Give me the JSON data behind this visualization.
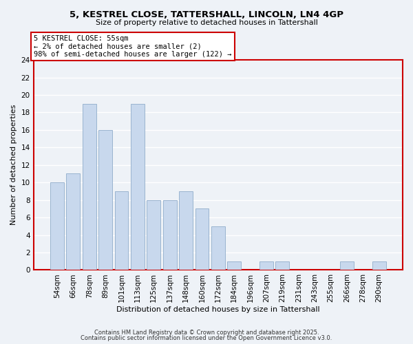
{
  "title1": "5, KESTREL CLOSE, TATTERSHALL, LINCOLN, LN4 4GP",
  "title2": "Size of property relative to detached houses in Tattershall",
  "xlabel": "Distribution of detached houses by size in Tattershall",
  "ylabel": "Number of detached properties",
  "bar_color": "#c8d8ed",
  "bar_edge_color": "#9ab4cf",
  "categories": [
    "54sqm",
    "66sqm",
    "78sqm",
    "89sqm",
    "101sqm",
    "113sqm",
    "125sqm",
    "137sqm",
    "148sqm",
    "160sqm",
    "172sqm",
    "184sqm",
    "196sqm",
    "207sqm",
    "219sqm",
    "231sqm",
    "243sqm",
    "255sqm",
    "266sqm",
    "278sqm",
    "290sqm"
  ],
  "values": [
    10,
    11,
    19,
    16,
    9,
    19,
    8,
    8,
    9,
    7,
    5,
    1,
    0,
    1,
    1,
    0,
    0,
    0,
    1,
    0,
    1
  ],
  "ylim": [
    0,
    24
  ],
  "yticks": [
    0,
    2,
    4,
    6,
    8,
    10,
    12,
    14,
    16,
    18,
    20,
    22,
    24
  ],
  "annotation_title": "5 KESTREL CLOSE: 55sqm",
  "annotation_line1": "← 2% of detached houses are smaller (2)",
  "annotation_line2": "98% of semi-detached houses are larger (122) →",
  "annotation_box_facecolor": "#ffffff",
  "annotation_box_edgecolor": "#cc0000",
  "footnote1": "Contains HM Land Registry data © Crown copyright and database right 2025.",
  "footnote2": "Contains public sector information licensed under the Open Government Licence v3.0.",
  "background_color": "#eef2f7",
  "plot_bg_color": "#eef2f7",
  "grid_color": "#ffffff",
  "spine_color": "#cc0000",
  "title_fontsize": 9.5,
  "subtitle_fontsize": 8,
  "ylabel_fontsize": 8,
  "xlabel_fontsize": 8,
  "tick_fontsize": 7.5,
  "annotation_fontsize": 7.5,
  "footnote_fontsize": 6
}
